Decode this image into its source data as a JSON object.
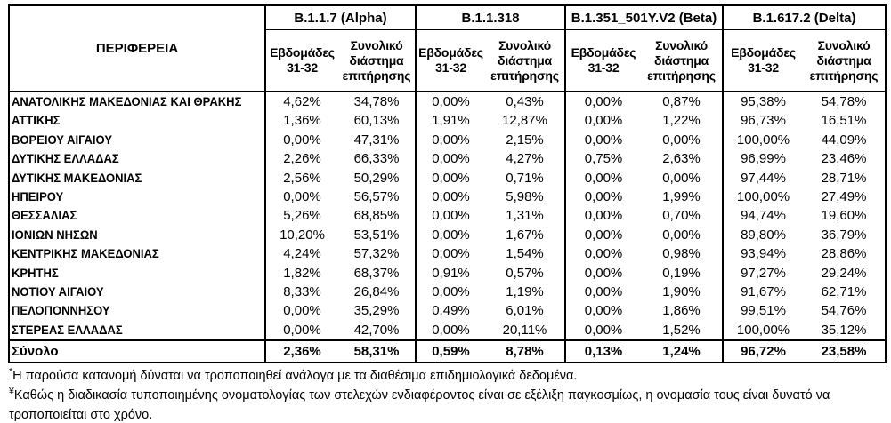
{
  "table": {
    "region_header": "ΠΕΡΙΦΕΡΕΙΑ",
    "variant_groups": [
      {
        "label": "B.1.1.7 (Alpha)"
      },
      {
        "label": "B.1.1.318"
      },
      {
        "label": "B.1.351_501Y.V2 (Beta)"
      },
      {
        "label": "B.1.617.2 (Delta)"
      }
    ],
    "subheaders": {
      "weeks": "Εβδομάδες 31-32",
      "total": "Συνολικό διάστημα επιτήρησης"
    },
    "rows": [
      {
        "region": "ΑΝΑΤΟΛΙΚΗΣ ΜΑΚΕΔΟΝΙΑΣ ΚΑΙ ΘΡΑΚΗΣ",
        "values": [
          "4,62%",
          "34,78%",
          "0,00%",
          "0,43%",
          "0,00%",
          "0,87%",
          "95,38%",
          "54,78%"
        ]
      },
      {
        "region": "ΑΤΤΙΚΗΣ",
        "values": [
          "1,36%",
          "60,13%",
          "1,91%",
          "12,87%",
          "0,00%",
          "1,22%",
          "96,73%",
          "16,51%"
        ]
      },
      {
        "region": "ΒΟΡΕΙΟΥ ΑΙΓΑΙΟΥ",
        "values": [
          "0,00%",
          "47,31%",
          "0,00%",
          "2,15%",
          "0,00%",
          "0,00%",
          "100,00%",
          "44,09%"
        ]
      },
      {
        "region": "ΔΥΤΙΚΗΣ ΕΛΛΑΔΑΣ",
        "values": [
          "2,26%",
          "66,33%",
          "0,00%",
          "4,27%",
          "0,75%",
          "2,63%",
          "96,99%",
          "23,46%"
        ]
      },
      {
        "region": "ΔΥΤΙΚΗΣ ΜΑΚΕΔΟΝΙΑΣ",
        "values": [
          "2,56%",
          "50,29%",
          "0,00%",
          "0,71%",
          "0,00%",
          "0,00%",
          "97,44%",
          "28,71%"
        ]
      },
      {
        "region": "ΗΠΕΙΡΟΥ",
        "values": [
          "0,00%",
          "56,57%",
          "0,00%",
          "5,98%",
          "0,00%",
          "1,99%",
          "100,00%",
          "27,49%"
        ]
      },
      {
        "region": "ΘΕΣΣΑΛΙΑΣ",
        "values": [
          "5,26%",
          "68,85%",
          "0,00%",
          "1,31%",
          "0,00%",
          "0,70%",
          "94,74%",
          "19,60%"
        ]
      },
      {
        "region": "ΙΟΝΙΩΝ ΝΗΣΩΝ",
        "values": [
          "10,20%",
          "53,51%",
          "0,00%",
          "1,67%",
          "0,00%",
          "0,00%",
          "89,80%",
          "36,79%"
        ]
      },
      {
        "region": "ΚΕΝΤΡΙΚΗΣ ΜΑΚΕΔΟΝΙΑΣ",
        "values": [
          "4,24%",
          "57,32%",
          "0,00%",
          "1,54%",
          "0,00%",
          "0,98%",
          "93,94%",
          "28,86%"
        ]
      },
      {
        "region": "ΚΡΗΤΗΣ",
        "values": [
          "1,82%",
          "68,37%",
          "0,91%",
          "0,57%",
          "0,00%",
          "0,19%",
          "97,27%",
          "29,24%"
        ]
      },
      {
        "region": "ΝΟΤΙΟΥ ΑΙΓΑΙΟΥ",
        "values": [
          "8,33%",
          "26,84%",
          "0,00%",
          "1,19%",
          "0,00%",
          "1,90%",
          "91,67%",
          "62,71%"
        ]
      },
      {
        "region": "ΠΕΛΟΠΟΝΝΗΣΟΥ",
        "values": [
          "0,00%",
          "35,29%",
          "0,49%",
          "6,01%",
          "0,00%",
          "1,86%",
          "99,51%",
          "54,76%"
        ]
      },
      {
        "region": "ΣΤΕΡΕΑΣ ΕΛΛΑΔΑΣ",
        "values": [
          "0,00%",
          "42,70%",
          "0,00%",
          "20,11%",
          "0,00%",
          "1,52%",
          "100,00%",
          "35,12%"
        ]
      }
    ],
    "total_row": {
      "label": "Σύνολο",
      "values": [
        "2,36%",
        "58,31%",
        "0,59%",
        "8,78%",
        "0,13%",
        "1,24%",
        "96,72%",
        "23,58%"
      ]
    }
  },
  "footnotes": [
    {
      "marker": "*",
      "text": "Η παρούσα κατανομή δύναται να τροποποιηθεί ανάλογα με τα διαθέσιμα επιδημιολογικά δεδομένα."
    },
    {
      "marker": "¥",
      "text": "Καθώς η διαδικασία τυποποιημένης ονοματολογίας των στελεχών ενδιαφέροντος είναι σε εξέλιξη παγκοσμίως, η ονομασία τους είναι δυνατό να τροποποιείται στο χρόνο."
    }
  ]
}
